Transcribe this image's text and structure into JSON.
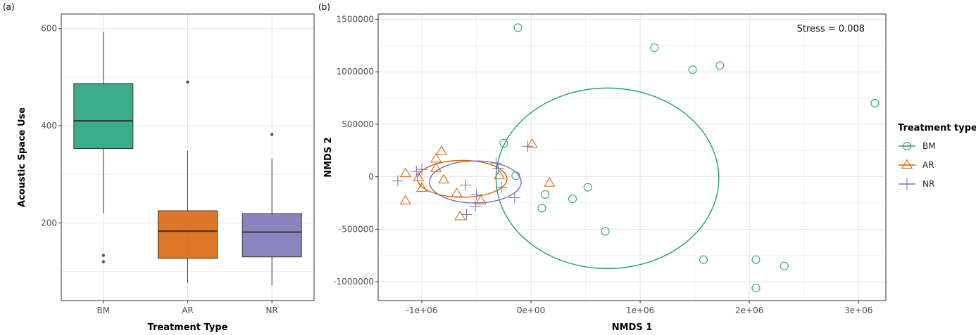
{
  "chart_data": [
    {
      "panel": "(a)",
      "type": "box",
      "xlabel": "Treatment Type",
      "ylabel": "Acoustic Space Use",
      "ylim": [
        40,
        630
      ],
      "yticks": [
        200,
        400,
        600
      ],
      "grid": true,
      "categories": [
        "BM",
        "AR",
        "NR"
      ],
      "colors": [
        "#1b9e77",
        "#d95f02",
        "#7570b3"
      ],
      "boxes": [
        {
          "category": "BM",
          "whisker_low": 220,
          "q1": 353,
          "median": 410,
          "q3": 487,
          "whisker_high": 593,
          "outliers": [
            133,
            120
          ]
        },
        {
          "category": "AR",
          "whisker_low": 76,
          "q1": 127,
          "median": 183,
          "q3": 225,
          "whisker_high": 348,
          "outliers": [
            490
          ]
        },
        {
          "category": "NR",
          "whisker_low": 72,
          "q1": 130,
          "median": 181,
          "q3": 219,
          "whisker_high": 333,
          "outliers": [
            382
          ]
        }
      ]
    },
    {
      "panel": "(b)",
      "type": "scatter",
      "xlabel": "NMDS 1",
      "ylabel": "NMDS 2",
      "xlim": [
        -1400000,
        3250000
      ],
      "ylim": [
        -1180000,
        1550000
      ],
      "xticks": [
        -1000000,
        0,
        1000000,
        2000000,
        3000000
      ],
      "xtick_labels": [
        "-1e+06",
        "0e+00",
        "1e+06",
        "2e+06",
        "3e+06"
      ],
      "yticks": [
        -1000000,
        -500000,
        0,
        500000,
        1000000,
        1500000
      ],
      "ytick_labels": [
        "-1000000",
        "-500000",
        "0",
        "500000",
        "1000000",
        "1500000"
      ],
      "grid": true,
      "annotation": "Stress = 0.008",
      "legend_title": "Treatment type",
      "legend_position": "right",
      "series": [
        {
          "name": "BM",
          "marker": "circle",
          "color": "#1b9e77",
          "points": [
            [
              -120000,
              1420000
            ],
            [
              1130000,
              1230000
            ],
            [
              1480000,
              1020000
            ],
            [
              1730000,
              1060000
            ],
            [
              3150000,
              700000
            ],
            [
              -250000,
              320000
            ],
            [
              -140000,
              10000
            ],
            [
              130000,
              -170000
            ],
            [
              380000,
              -210000
            ],
            [
              520000,
              -100000
            ],
            [
              100000,
              -300000
            ],
            [
              680000,
              -520000
            ],
            [
              1580000,
              -790000
            ],
            [
              2060000,
              -790000
            ],
            [
              2320000,
              -850000
            ],
            [
              2060000,
              -1060000
            ]
          ],
          "ellipse": {
            "cx": 700000,
            "cy": -15000,
            "rx": 1020000,
            "ry": 860000
          }
        },
        {
          "name": "AR",
          "marker": "triangle",
          "color": "#d95f02",
          "points": [
            [
              -820000,
              240000
            ],
            [
              -870000,
              170000
            ],
            [
              -1150000,
              30000
            ],
            [
              -870000,
              80000
            ],
            [
              -1030000,
              -10000
            ],
            [
              -800000,
              -30000
            ],
            [
              -680000,
              -160000
            ],
            [
              -1150000,
              -230000
            ],
            [
              -460000,
              -230000
            ],
            [
              -650000,
              -380000
            ],
            [
              10000,
              310000
            ],
            [
              170000,
              -60000
            ],
            [
              -290000,
              10000
            ],
            [
              -1000000,
              -110000
            ]
          ],
          "ellipse": {
            "cx": -630000,
            "cy": -20000,
            "rx": 410000,
            "ry": 175000
          }
        },
        {
          "name": "NR",
          "marker": "cross",
          "color": "#7570b3",
          "points": [
            [
              -1220000,
              -40000
            ],
            [
              -1050000,
              50000
            ],
            [
              -1000000,
              70000
            ],
            [
              -600000,
              -80000
            ],
            [
              -500000,
              -170000
            ],
            [
              -510000,
              -280000
            ],
            [
              -590000,
              -360000
            ],
            [
              -320000,
              130000
            ],
            [
              -270000,
              -100000
            ],
            [
              -30000,
              290000
            ],
            [
              -150000,
              -200000
            ],
            [
              -300000,
              80000
            ]
          ],
          "ellipse": {
            "cx": -510000,
            "cy": -50000,
            "rx": 420000,
            "ry": 200000
          }
        }
      ]
    }
  ]
}
